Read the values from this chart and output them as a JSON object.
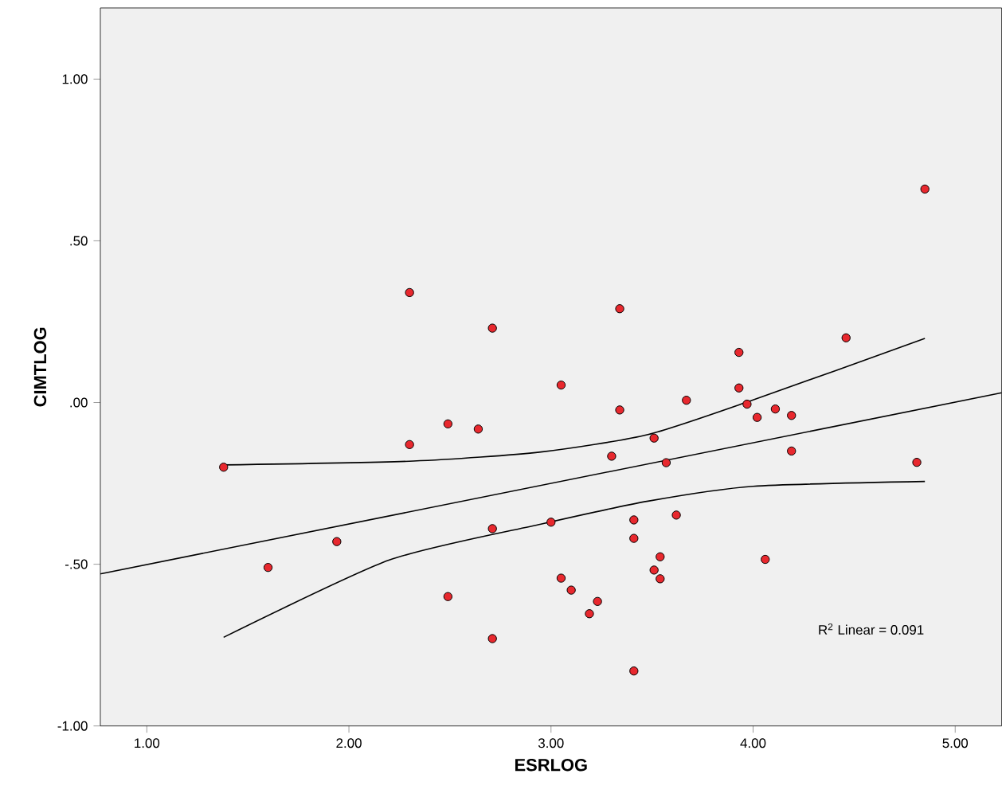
{
  "chart_data": {
    "type": "scatter",
    "xlabel": "ESRLOG",
    "ylabel": "CIMTLOG",
    "xlim": [
      0.77,
      5.23
    ],
    "ylim": [
      -1.0,
      1.22
    ],
    "xticks": [
      {
        "value": 1,
        "label": "1.00"
      },
      {
        "value": 2,
        "label": "2.00"
      },
      {
        "value": 3,
        "label": "3.00"
      },
      {
        "value": 4,
        "label": "4.00"
      },
      {
        "value": 5,
        "label": "5.00"
      }
    ],
    "yticks": [
      {
        "value": -1,
        "label": "-1.00"
      },
      {
        "value": -0.5,
        "label": "-.50"
      },
      {
        "value": 0,
        "label": ".00"
      },
      {
        "value": 0.5,
        "label": ".50"
      },
      {
        "value": 1,
        "label": "1.00"
      }
    ],
    "grid": false,
    "annotations": [
      "R$^{2}$ Linear = 0.091"
    ],
    "series": [
      {
        "color": "#e8282e",
        "marker": "circle",
        "x": [
          2.3,
          2.71,
          2.49,
          2.64,
          2.3,
          1.38,
          1.6,
          1.94,
          2.71,
          3.0,
          2.49,
          2.71,
          4.85,
          3.34,
          4.46,
          3.93,
          3.05,
          3.93,
          3.67,
          3.34,
          3.97,
          4.11,
          4.02,
          4.19,
          3.51,
          3.3,
          3.57,
          4.19,
          4.81,
          3.41,
          3.62,
          3.41,
          3.54,
          3.51,
          3.54,
          4.06,
          3.05,
          3.1,
          3.23,
          3.19,
          3.41
        ],
        "values": [
          0.34,
          0.23,
          -0.066,
          -0.082,
          -0.13,
          -0.2,
          -0.51,
          -0.43,
          -0.39,
          -0.37,
          -0.6,
          -0.73,
          0.66,
          0.29,
          0.2,
          0.155,
          0.054,
          0.045,
          0.007,
          -0.023,
          -0.005,
          -0.02,
          -0.046,
          -0.04,
          -0.11,
          -0.166,
          -0.186,
          -0.15,
          -0.185,
          -0.363,
          -0.348,
          -0.42,
          -0.477,
          -0.518,
          -0.545,
          -0.485,
          -0.543,
          -0.58,
          -0.615,
          -0.653,
          -0.83
        ]
      },
      {
        "type": "line",
        "color": "#000000",
        "marker": "none",
        "x": [
          0.77,
          5.23
        ],
        "values": [
          -0.53,
          0.03
        ]
      },
      {
        "type": "line",
        "color": "#000000",
        "marker": "none",
        "x": [
          1.38,
          2.32,
          2.95,
          3.48,
          4.0,
          4.85
        ],
        "values": [
          -0.193,
          -0.181,
          -0.153,
          -0.099,
          0.008,
          0.198
        ]
      },
      {
        "type": "line",
        "color": "#000000",
        "marker": "none",
        "x": [
          1.38,
          2.2,
          2.95,
          3.48,
          4.0,
          4.85
        ],
        "values": [
          -0.726,
          -0.487,
          -0.376,
          -0.305,
          -0.259,
          -0.244
        ]
      }
    ]
  }
}
